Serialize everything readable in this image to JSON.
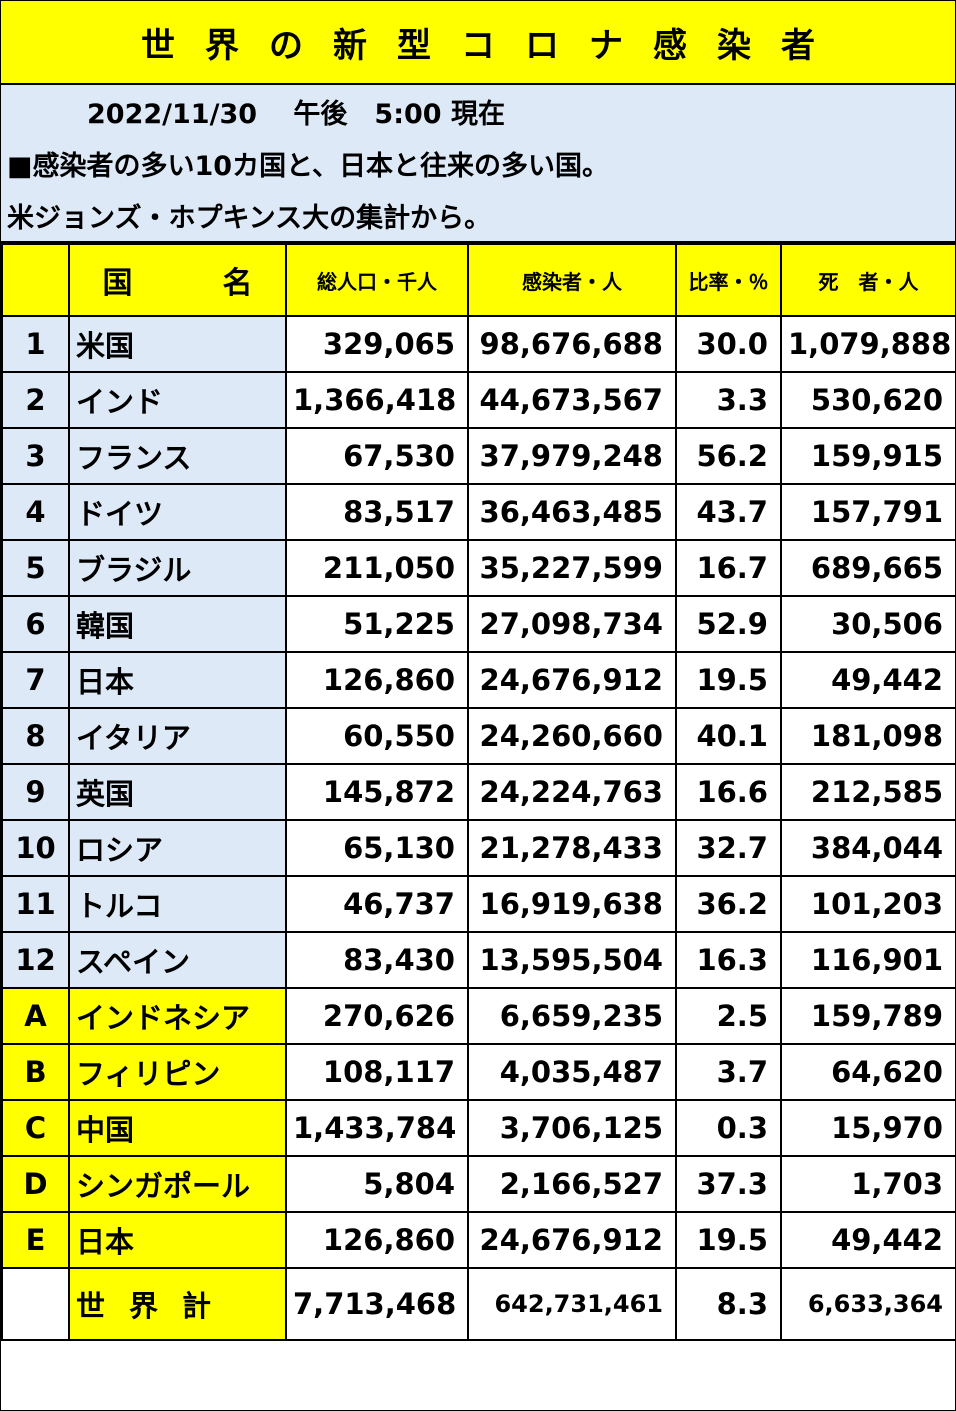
{
  "title": "世界の新型コロナ感染者",
  "info": {
    "datetime": "2022/11/30　 午後　5:00 現在",
    "note1": "■感染者の多い10カ国と、日本と往来の多い国。",
    "note2": "米ジョンズ・ホプキンス大の集計から。"
  },
  "colors": {
    "header_bg": "#ffff00",
    "label_bg": "#dde9f6"
  },
  "columns": [
    "",
    "国　名",
    "総人口・千人",
    "感染者・人",
    "比率・％",
    "死　者・人"
  ],
  "rows": [
    {
      "idx": "1",
      "country": "米国",
      "population": "329,065",
      "cases": "98,676,688",
      "ratio": "30.0",
      "deaths": "1,079,888"
    },
    {
      "idx": "2",
      "country": "インド",
      "population": "1,366,418",
      "cases": "44,673,567",
      "ratio": "3.3",
      "deaths": "530,620"
    },
    {
      "idx": "3",
      "country": "フランス",
      "population": "67,530",
      "cases": "37,979,248",
      "ratio": "56.2",
      "deaths": "159,915"
    },
    {
      "idx": "4",
      "country": "ドイツ",
      "population": "83,517",
      "cases": "36,463,485",
      "ratio": "43.7",
      "deaths": "157,791"
    },
    {
      "idx": "5",
      "country": "ブラジル",
      "population": "211,050",
      "cases": "35,227,599",
      "ratio": "16.7",
      "deaths": "689,665"
    },
    {
      "idx": "6",
      "country": "韓国",
      "population": "51,225",
      "cases": "27,098,734",
      "ratio": "52.9",
      "deaths": "30,506"
    },
    {
      "idx": "7",
      "country": "日本",
      "population": "126,860",
      "cases": "24,676,912",
      "ratio": "19.5",
      "deaths": "49,442"
    },
    {
      "idx": "8",
      "country": "イタリア",
      "population": "60,550",
      "cases": "24,260,660",
      "ratio": "40.1",
      "deaths": "181,098"
    },
    {
      "idx": "9",
      "country": "英国",
      "population": "145,872",
      "cases": "24,224,763",
      "ratio": "16.6",
      "deaths": "212,585"
    },
    {
      "idx": "10",
      "country": "ロシア",
      "population": "65,130",
      "cases": "21,278,433",
      "ratio": "32.7",
      "deaths": "384,044"
    },
    {
      "idx": "11",
      "country": "トルコ",
      "population": "46,737",
      "cases": "16,919,638",
      "ratio": "36.2",
      "deaths": "101,203"
    },
    {
      "idx": "12",
      "country": "スペイン",
      "population": "83,430",
      "cases": "13,595,504",
      "ratio": "16.3",
      "deaths": "116,901"
    }
  ],
  "partners": [
    {
      "idx": "A",
      "country": "インドネシア",
      "population": "270,626",
      "cases": "6,659,235",
      "ratio": "2.5",
      "deaths": "159,789"
    },
    {
      "idx": "B",
      "country": "フィリピン",
      "population": "108,117",
      "cases": "4,035,487",
      "ratio": "3.7",
      "deaths": "64,620"
    },
    {
      "idx": "C",
      "country": "中国",
      "population": "1,433,784",
      "cases": "3,706,125",
      "ratio": "0.3",
      "deaths": "15,970"
    },
    {
      "idx": "D",
      "country": "シンガポール",
      "population": "5,804",
      "cases": "2,166,527",
      "ratio": "37.3",
      "deaths": "1,703"
    },
    {
      "idx": "E",
      "country": "日本",
      "population": "126,860",
      "cases": "24,676,912",
      "ratio": "19.5",
      "deaths": "49,442"
    }
  ],
  "total": {
    "label": "世界計",
    "population": "7,713,468",
    "cases": "642,731,461",
    "ratio": "8.3",
    "deaths": "6,633,364"
  }
}
